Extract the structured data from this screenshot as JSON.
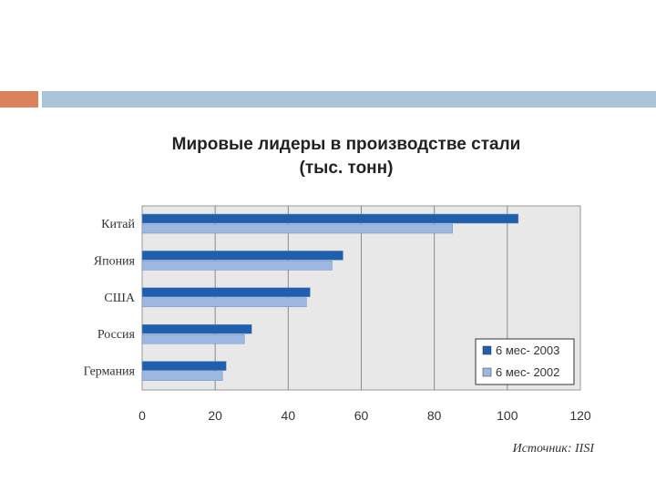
{
  "chart_data": {
    "type": "bar",
    "orientation": "horizontal",
    "title_line1": "Мировые лидеры в производстве стали",
    "title_line2": "(тыс. тонн)",
    "categories": [
      "Китай",
      "Япония",
      "США",
      "Россия",
      "Германия"
    ],
    "series": [
      {
        "name": "6 мес- 2003",
        "values": [
          103,
          55,
          46,
          30,
          23
        ],
        "color": "#1f5fad"
      },
      {
        "name": "6 мес- 2002",
        "values": [
          85,
          52,
          45,
          28,
          22
        ],
        "color": "#9db7e0"
      }
    ],
    "xlim": [
      0,
      120
    ],
    "xticks": [
      0,
      20,
      40,
      60,
      80,
      100,
      120
    ],
    "grid": true,
    "legend_position": "bottom-right",
    "source": "Источник: IISI"
  },
  "colors": {
    "accent_orange": "#d9825b",
    "accent_blue": "#a8c4d6",
    "plot_bg": "#e8e8e8"
  }
}
